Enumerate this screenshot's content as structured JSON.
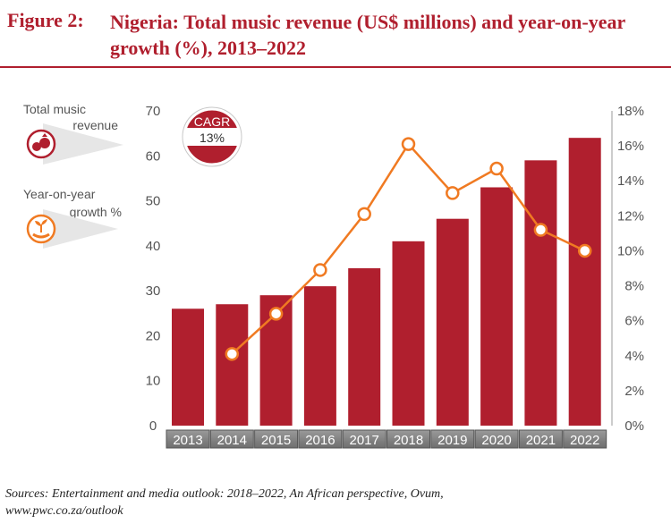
{
  "figure": {
    "number": "Figure 2:",
    "title": "Nigeria: Total music revenue (US$ millions) and year-on-year growth (%), 2013–2022"
  },
  "legend": {
    "revenue_label_1": "Total music",
    "revenue_label_2": "revenue",
    "growth_label_1": "Year-on-year",
    "growth_label_2": "growth %"
  },
  "badge": {
    "label": "CAGR",
    "value": "13%"
  },
  "sources": {
    "line1": "Sources: Entertainment and media outlook: 2018–2022, An African perspective, Ovum,",
    "line2": "www.pwc.co.za/outlook"
  },
  "colors": {
    "bar": "#b01f2e",
    "line": "#f07a22",
    "title": "#b01f2e",
    "axis_text": "#555555",
    "year_label_bg": "#8a8a8a"
  },
  "chart_data": {
    "type": "bar",
    "categories": [
      "2013",
      "2014",
      "2015",
      "2016",
      "2017",
      "2018",
      "2019",
      "2020",
      "2021",
      "2022"
    ],
    "series": [
      {
        "name": "Total music revenue",
        "axis": "left",
        "type": "bar",
        "values": [
          26,
          27,
          29,
          31,
          35,
          41,
          46,
          53,
          59,
          64
        ]
      },
      {
        "name": "Year-on-year growth %",
        "axis": "right",
        "type": "line",
        "values": [
          null,
          4.1,
          6.4,
          8.9,
          12.1,
          16.1,
          13.3,
          14.7,
          11.2,
          10.0
        ]
      }
    ],
    "yticks_left": [
      "0",
      "10",
      "20",
      "30",
      "40",
      "50",
      "60",
      "70"
    ],
    "yticks_right": [
      "0%",
      "2%",
      "4%",
      "6%",
      "8%",
      "10%",
      "12%",
      "14%",
      "16%",
      "18%"
    ],
    "ylim_left": [
      0,
      70
    ],
    "ylim_right": [
      0,
      18
    ],
    "grid": false
  }
}
